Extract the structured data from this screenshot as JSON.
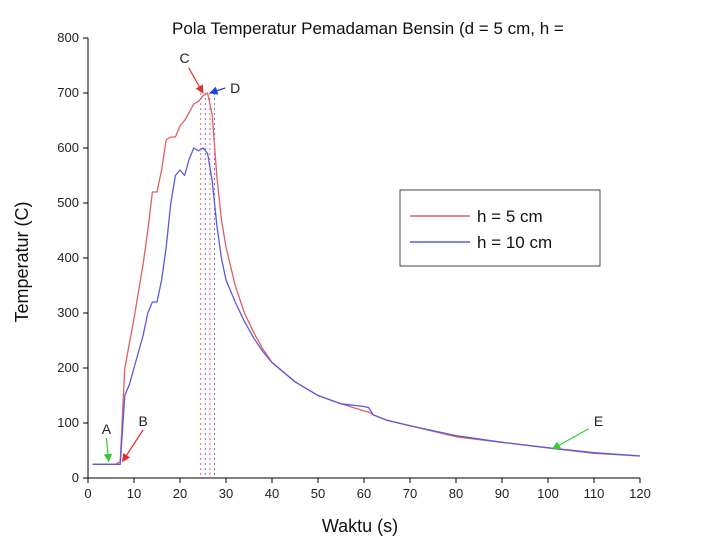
{
  "chart_data": {
    "type": "line",
    "title": "Pola Temperatur Pemadaman Bensin (d = 5 cm, h =",
    "xlabel": "Waktu (s)",
    "ylabel": "Temperatur (C)",
    "xlim": [
      0,
      120
    ],
    "ylim": [
      0,
      800
    ],
    "xticks": [
      0,
      10,
      20,
      30,
      40,
      50,
      60,
      70,
      80,
      90,
      100,
      110,
      120
    ],
    "yticks": [
      0,
      100,
      200,
      300,
      400,
      500,
      600,
      700,
      800
    ],
    "grid": false,
    "legend_position": "right",
    "series": [
      {
        "name": "h = 5 cm",
        "color": "#e06060",
        "x": [
          1,
          6,
          7,
          8,
          9,
          10,
          11,
          12,
          13,
          14,
          15,
          16,
          17,
          18,
          19,
          20,
          21,
          22,
          23,
          24,
          25,
          26,
          27,
          28,
          29,
          30,
          32,
          34,
          36,
          38,
          40,
          45,
          50,
          55,
          60,
          61,
          62,
          65,
          70,
          80,
          90,
          100,
          110,
          120
        ],
        "y": [
          25,
          25,
          30,
          200,
          245,
          290,
          340,
          390,
          450,
          520,
          520,
          560,
          615,
          620,
          620,
          640,
          650,
          665,
          680,
          685,
          695,
          700,
          660,
          550,
          470,
          420,
          350,
          300,
          265,
          235,
          210,
          175,
          150,
          135,
          122,
          120,
          115,
          105,
          95,
          75,
          65,
          55,
          45,
          40
        ]
      },
      {
        "name": "h = 10 cm",
        "color": "#5a5ae0",
        "x": [
          1,
          7,
          8,
          9,
          10,
          11,
          12,
          13,
          14,
          15,
          16,
          17,
          18,
          19,
          20,
          21,
          22,
          23,
          24,
          25,
          26,
          27,
          28,
          29,
          30,
          32,
          34,
          36,
          38,
          40,
          45,
          50,
          55,
          60,
          61,
          62,
          65,
          70,
          80,
          90,
          100,
          110,
          120
        ],
        "y": [
          25,
          25,
          150,
          170,
          200,
          230,
          260,
          300,
          320,
          320,
          360,
          420,
          500,
          550,
          560,
          550,
          580,
          600,
          595,
          600,
          590,
          540,
          460,
          400,
          360,
          320,
          285,
          255,
          230,
          210,
          175,
          150,
          135,
          130,
          128,
          115,
          105,
          95,
          77,
          65,
          55,
          46,
          40
        ]
      }
    ],
    "annotations": [
      {
        "label": "A",
        "x": 4,
        "y": 80,
        "arrow_to": [
          4.5,
          30
        ],
        "arrow_color": "#33cc33"
      },
      {
        "label": "B",
        "x": 12,
        "y": 95,
        "arrow_to": [
          7.5,
          30
        ],
        "arrow_color": "#e03030"
      },
      {
        "label": "C",
        "x": 21,
        "y": 755,
        "arrow_to": [
          25,
          700
        ],
        "arrow_color": "#e03030"
      },
      {
        "label": "D",
        "x": 32,
        "y": 700,
        "arrow_to": [
          26.5,
          700
        ],
        "arrow_color": "#2040e0"
      },
      {
        "label": "E",
        "x": 111,
        "y": 95,
        "arrow_to": [
          101,
          53
        ],
        "arrow_color": "#33cc33"
      }
    ],
    "reference_lines_x": [
      24.5,
      25.5,
      26.5,
      27.5
    ]
  }
}
